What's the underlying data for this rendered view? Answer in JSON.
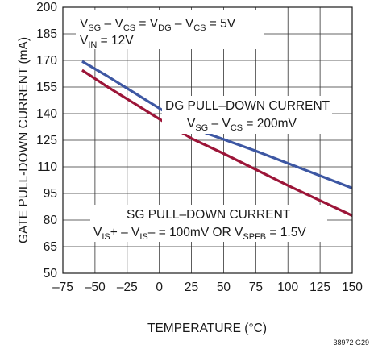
{
  "chart_data": {
    "type": "line",
    "xlabel": "TEMPERATURE (°C)",
    "ylabel": "GATE PULL-DOWN CURRENT (mA)",
    "xlim": [
      -75,
      150
    ],
    "ylim": [
      50,
      200
    ],
    "xticks": [
      -75,
      -50,
      -25,
      0,
      25,
      50,
      75,
      100,
      125,
      150
    ],
    "yticks": [
      50,
      65,
      80,
      95,
      110,
      125,
      140,
      155,
      170,
      185,
      200
    ],
    "xtick_labels": [
      "–75",
      "–50",
      "–25",
      "0",
      "25",
      "50",
      "75",
      "100",
      "125",
      "150"
    ],
    "ytick_labels": [
      "50",
      "65",
      "80",
      "95",
      "110",
      "125",
      "140",
      "155",
      "170",
      "185",
      "200"
    ],
    "grid": true,
    "series": [
      {
        "label_line1": "DG PULL–DOWN CURRENT",
        "label_line2": "V_SG – V_CS = 200mV",
        "color": "#3d57a3",
        "x": [
          -60,
          -40,
          -20,
          0,
          25,
          50,
          75,
          100,
          125,
          150
        ],
        "y": [
          169.5,
          161,
          152,
          143,
          132,
          125.5,
          119,
          112,
          105,
          98
        ]
      },
      {
        "label_line1": "SG PULL–DOWN CURRENT",
        "label_line2": "V_IS+ – V_IS– = 100mV OR V_SPFB = 1.5V",
        "color": "#9c1538",
        "x": [
          -60,
          -40,
          -20,
          0,
          25,
          50,
          75,
          100,
          125,
          150
        ],
        "y": [
          164.5,
          155,
          146,
          137,
          126,
          117.5,
          108.5,
          99.5,
          91,
          82.5
        ]
      }
    ],
    "annotations": [
      "V_SG – V_CS = V_DG – V_CS = 5V",
      "V_IN = 12V"
    ],
    "figure_id": "38972 G29"
  }
}
